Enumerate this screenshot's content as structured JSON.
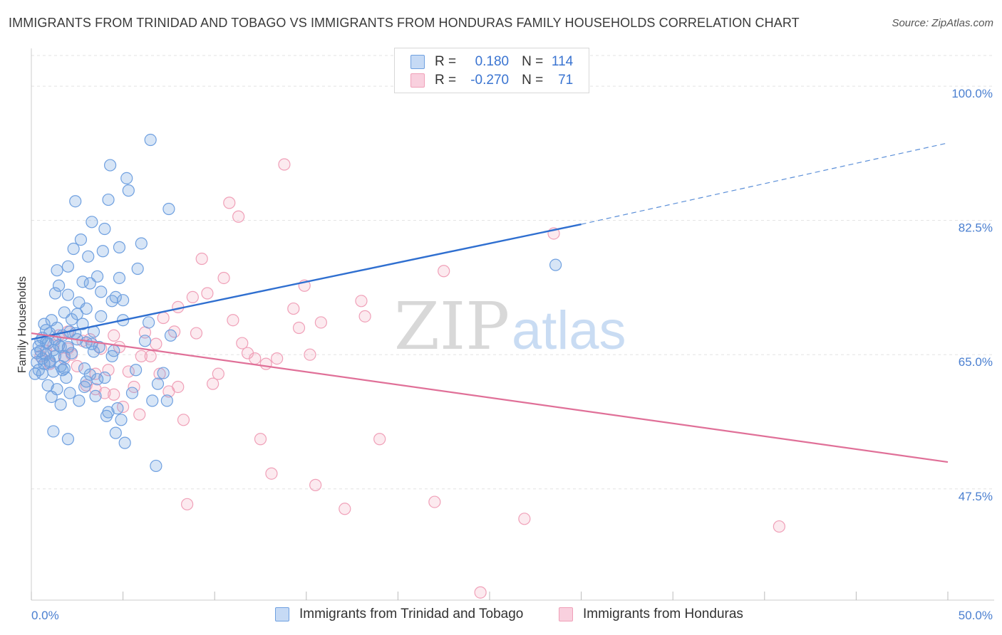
{
  "title": "IMMIGRANTS FROM TRINIDAD AND TOBAGO VS IMMIGRANTS FROM HONDURAS FAMILY HOUSEHOLDS CORRELATION CHART",
  "source": "Source: ZipAtlas.com",
  "watermark": {
    "zip": "ZIP",
    "atlas": "atlas"
  },
  "legend": {
    "rows": [
      {
        "r_label": "R =",
        "r_value": "0.180",
        "n_label": "N =",
        "n_value": "114",
        "color": "#6fa0e0"
      },
      {
        "r_label": "R =",
        "r_value": "-0.270",
        "n_label": "N =",
        "n_value": "71",
        "color": "#f0a0b8"
      }
    ]
  },
  "bottom_legend": [
    {
      "label": "Immigrants from Trinidad and Tobago",
      "color": "#6fa0e0"
    },
    {
      "label": "Immigrants from Honduras",
      "color": "#f0a0b8"
    }
  ],
  "chart_data": {
    "type": "scatter",
    "title": "IMMIGRANTS FROM TRINIDAD AND TOBAGO VS IMMIGRANTS FROM HONDURAS FAMILY HOUSEHOLDS CORRELATION CHART",
    "xlabel": "",
    "ylabel": "Family Households",
    "xlim": [
      0,
      50
    ],
    "ylim": [
      33,
      104
    ],
    "x_tick_labels": [
      "0.0%",
      "50.0%"
    ],
    "y_ticks": [
      47.5,
      65.0,
      82.5,
      100.0
    ],
    "y_tick_labels": [
      "47.5%",
      "65.0%",
      "82.5%",
      "100.0%"
    ],
    "grid": true,
    "legend_position": "top-center",
    "series": [
      {
        "name": "Immigrants from Trinidad and Tobago",
        "color": "#6fa0e0",
        "trend": {
          "x": [
            0,
            30,
            50
          ],
          "y": [
            67.0,
            82.0,
            92.6
          ],
          "solid_until": 30
        },
        "points": [
          [
            0.2,
            62.5
          ],
          [
            0.3,
            64.0
          ],
          [
            0.3,
            65.2
          ],
          [
            0.4,
            66.1
          ],
          [
            0.4,
            63.0
          ],
          [
            0.5,
            65.5
          ],
          [
            0.5,
            66.8
          ],
          [
            0.6,
            64.5
          ],
          [
            0.6,
            67.2
          ],
          [
            0.7,
            63.8
          ],
          [
            0.7,
            69.0
          ],
          [
            0.8,
            65.0
          ],
          [
            0.8,
            68.2
          ],
          [
            0.9,
            66.5
          ],
          [
            0.9,
            61.0
          ],
          [
            1.0,
            64.2
          ],
          [
            1.0,
            67.8
          ],
          [
            1.1,
            69.5
          ],
          [
            1.1,
            59.5
          ],
          [
            1.2,
            65.6
          ],
          [
            1.2,
            62.8
          ],
          [
            1.3,
            67.0
          ],
          [
            1.3,
            73.0
          ],
          [
            1.4,
            68.5
          ],
          [
            1.4,
            60.5
          ],
          [
            1.5,
            66.2
          ],
          [
            1.5,
            74.0
          ],
          [
            1.6,
            63.5
          ],
          [
            1.6,
            58.5
          ],
          [
            1.7,
            67.5
          ],
          [
            1.8,
            64.8
          ],
          [
            1.8,
            70.5
          ],
          [
            1.9,
            62.0
          ],
          [
            2.0,
            66.0
          ],
          [
            2.0,
            76.5
          ],
          [
            2.1,
            60.0
          ],
          [
            2.2,
            65.2
          ],
          [
            2.3,
            78.8
          ],
          [
            2.4,
            85.0
          ],
          [
            2.5,
            70.3
          ],
          [
            2.5,
            67.0
          ],
          [
            2.6,
            71.8
          ],
          [
            2.7,
            80.0
          ],
          [
            2.8,
            69.0
          ],
          [
            2.9,
            63.2
          ],
          [
            3.0,
            61.5
          ],
          [
            3.0,
            66.6
          ],
          [
            3.1,
            77.8
          ],
          [
            3.2,
            74.3
          ],
          [
            3.3,
            82.3
          ],
          [
            3.4,
            68.0
          ],
          [
            3.5,
            59.6
          ],
          [
            3.6,
            61.8
          ],
          [
            3.7,
            66.0
          ],
          [
            3.8,
            73.2
          ],
          [
            3.9,
            78.5
          ],
          [
            4.0,
            81.4
          ],
          [
            4.1,
            57.0
          ],
          [
            4.2,
            85.2
          ],
          [
            4.3,
            89.7
          ],
          [
            4.4,
            72.0
          ],
          [
            4.5,
            65.5
          ],
          [
            4.6,
            54.8
          ],
          [
            4.7,
            58.0
          ],
          [
            4.8,
            79.0
          ],
          [
            4.9,
            56.5
          ],
          [
            5.0,
            72.1
          ],
          [
            5.1,
            53.5
          ],
          [
            5.2,
            88.0
          ],
          [
            5.3,
            86.4
          ],
          [
            5.5,
            60.0
          ],
          [
            5.7,
            63.0
          ],
          [
            5.8,
            76.2
          ],
          [
            6.0,
            79.5
          ],
          [
            6.2,
            66.8
          ],
          [
            6.4,
            69.2
          ],
          [
            6.5,
            93.0
          ],
          [
            6.6,
            59.0
          ],
          [
            6.8,
            50.5
          ],
          [
            6.9,
            61.2
          ],
          [
            7.2,
            62.6
          ],
          [
            7.4,
            59.0
          ],
          [
            7.5,
            84.0
          ],
          [
            7.6,
            67.5
          ],
          [
            0.6,
            62.5
          ],
          [
            0.8,
            66.6
          ],
          [
            1.0,
            64.0
          ],
          [
            1.2,
            55.0
          ],
          [
            1.4,
            76.0
          ],
          [
            1.6,
            66.0
          ],
          [
            1.8,
            63.2
          ],
          [
            2.0,
            72.8
          ],
          [
            2.2,
            69.6
          ],
          [
            2.4,
            67.8
          ],
          [
            2.6,
            59.0
          ],
          [
            2.8,
            74.5
          ],
          [
            3.0,
            71.0
          ],
          [
            3.2,
            62.4
          ],
          [
            3.4,
            65.4
          ],
          [
            3.6,
            75.2
          ],
          [
            3.8,
            70.0
          ],
          [
            4.0,
            62.0
          ],
          [
            4.2,
            57.5
          ],
          [
            4.4,
            64.8
          ],
          [
            4.6,
            72.5
          ],
          [
            4.8,
            75.0
          ],
          [
            5.0,
            69.5
          ],
          [
            1.3,
            64.8
          ],
          [
            1.7,
            63.0
          ],
          [
            2.1,
            68.0
          ],
          [
            2.9,
            60.8
          ],
          [
            3.3,
            66.4
          ],
          [
            2.0,
            54.0
          ],
          [
            28.6,
            76.7
          ]
        ]
      },
      {
        "name": "Immigrants from Honduras",
        "color": "#f0a0b8",
        "trend": {
          "x": [
            0,
            50
          ],
          "y": [
            67.8,
            51.0
          ]
        },
        "points": [
          [
            0.5,
            64.8
          ],
          [
            0.8,
            65.5
          ],
          [
            1.0,
            63.8
          ],
          [
            1.2,
            66.2
          ],
          [
            1.5,
            67.5
          ],
          [
            1.8,
            64.5
          ],
          [
            2.0,
            68.0
          ],
          [
            2.2,
            65.0
          ],
          [
            2.5,
            63.5
          ],
          [
            2.8,
            66.8
          ],
          [
            3.0,
            61.0
          ],
          [
            3.2,
            67.0
          ],
          [
            3.5,
            62.5
          ],
          [
            3.8,
            65.8
          ],
          [
            4.0,
            60.0
          ],
          [
            4.2,
            63.0
          ],
          [
            4.5,
            59.8
          ],
          [
            4.8,
            66.0
          ],
          [
            5.0,
            58.2
          ],
          [
            5.3,
            62.8
          ],
          [
            5.6,
            60.8
          ],
          [
            5.9,
            57.2
          ],
          [
            6.2,
            67.9
          ],
          [
            6.5,
            64.8
          ],
          [
            6.8,
            66.4
          ],
          [
            7.0,
            62.5
          ],
          [
            7.2,
            69.8
          ],
          [
            7.5,
            60.2
          ],
          [
            7.8,
            68.0
          ],
          [
            8.0,
            71.2
          ],
          [
            8.3,
            56.5
          ],
          [
            8.5,
            45.5
          ],
          [
            8.8,
            72.5
          ],
          [
            9.0,
            67.8
          ],
          [
            9.3,
            77.5
          ],
          [
            9.6,
            73.0
          ],
          [
            9.9,
            61.2
          ],
          [
            10.2,
            62.5
          ],
          [
            10.5,
            75.0
          ],
          [
            10.8,
            84.8
          ],
          [
            11.0,
            69.5
          ],
          [
            11.3,
            83.0
          ],
          [
            11.5,
            66.5
          ],
          [
            11.8,
            65.2
          ],
          [
            12.2,
            64.5
          ],
          [
            12.5,
            54.0
          ],
          [
            12.8,
            63.8
          ],
          [
            13.1,
            49.5
          ],
          [
            13.4,
            64.5
          ],
          [
            13.8,
            89.8
          ],
          [
            14.3,
            71.0
          ],
          [
            14.6,
            68.5
          ],
          [
            14.9,
            74.0
          ],
          [
            15.2,
            65.0
          ],
          [
            15.5,
            48.0
          ],
          [
            15.8,
            69.2
          ],
          [
            17.1,
            44.9
          ],
          [
            18.0,
            72.0
          ],
          [
            18.2,
            70.0
          ],
          [
            19.0,
            54.0
          ],
          [
            22.0,
            45.8
          ],
          [
            22.5,
            75.9
          ],
          [
            26.9,
            43.6
          ],
          [
            28.5,
            80.8
          ],
          [
            40.8,
            42.6
          ],
          [
            24.5,
            34.0
          ],
          [
            3.5,
            60.5
          ],
          [
            6.0,
            64.8
          ],
          [
            8.0,
            60.8
          ],
          [
            2.0,
            65.8
          ],
          [
            4.5,
            67.5
          ]
        ]
      }
    ]
  }
}
